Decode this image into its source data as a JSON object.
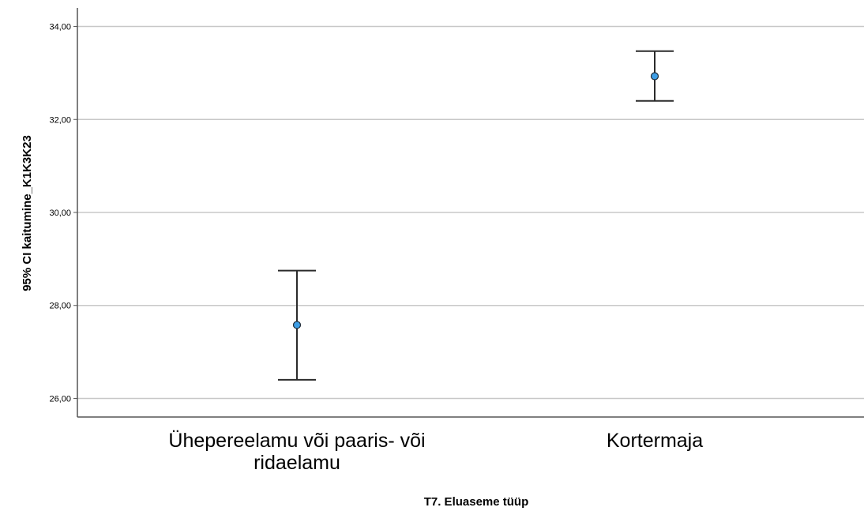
{
  "chart_data": {
    "type": "errorbar",
    "xlabel": "T7. Eluaseme tüüp",
    "ylabel": "95% CI kaitumine_K1K3K23",
    "categories": [
      [
        "Ühepereelamu või paaris- või",
        "ridaelamu"
      ],
      [
        "Kortermaja"
      ]
    ],
    "ylim": [
      25.6,
      34.4
    ],
    "yticks": [
      26,
      28,
      30,
      32,
      34
    ],
    "ytick_labels": [
      "26,00",
      "28,00",
      "30,00",
      "32,00",
      "34,00"
    ],
    "grid": true,
    "points": [
      {
        "mean": 27.58,
        "lower": 26.4,
        "upper": 28.75
      },
      {
        "mean": 32.93,
        "lower": 32.4,
        "upper": 33.47
      }
    ],
    "colors": {
      "marker_fill": "#3d9ee6",
      "marker_stroke": "#1f2a36",
      "whisker": "#2b2b2b",
      "grid": "#c8c8c8",
      "axis": "#555555"
    }
  }
}
